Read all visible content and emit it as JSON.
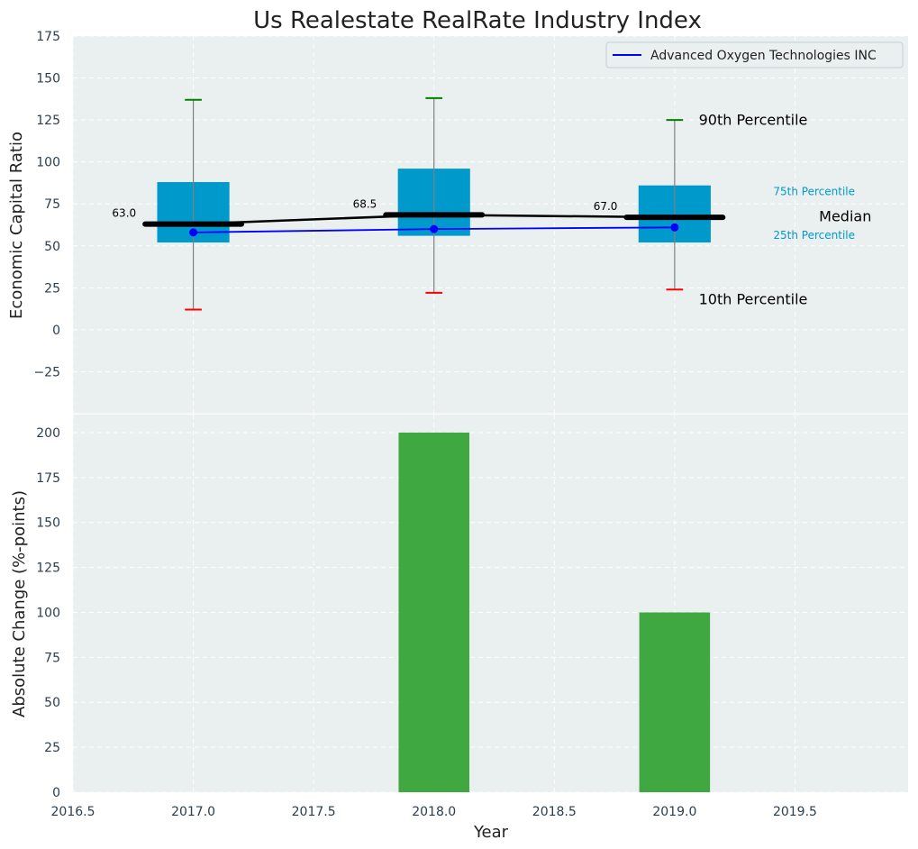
{
  "chart_data": {
    "type": "boxplot+bar",
    "title": "Us Realestate RealRate Industry Index",
    "xlabel": "Year",
    "x_ticks": [
      "2016.5",
      "2017.0",
      "2017.5",
      "2018.0",
      "2018.5",
      "2019.0",
      "2019.5"
    ],
    "xlim": [
      2016.5,
      2019.97
    ],
    "top": {
      "ylabel": "Economic Capital Ratio",
      "ylim": [
        -50,
        175
      ],
      "y_ticks": [
        "−25",
        "0",
        "25",
        "50",
        "75",
        "100",
        "125",
        "150",
        "175"
      ],
      "grid": true,
      "legend": {
        "position": "top-right",
        "entries": [
          "Advanced Oxygen Technologies INC"
        ]
      },
      "years": [
        2017,
        2018,
        2019
      ],
      "p10": [
        12,
        22,
        24
      ],
      "p25": [
        52,
        56,
        52
      ],
      "median": [
        63.0,
        68.5,
        67.0
      ],
      "median_labels": [
        "63.0",
        "68.5",
        "67.0"
      ],
      "p75": [
        88,
        96,
        86
      ],
      "p90": [
        137,
        138,
        125
      ],
      "company_series": {
        "name": "Advanced Oxygen Technologies INC",
        "values": [
          58,
          60,
          61
        ]
      },
      "annotations": {
        "p90": "90th Percentile",
        "p75": "75th Percentile",
        "median": "Median",
        "p25": "25th Percentile",
        "p10": "10th Percentile"
      }
    },
    "bottom": {
      "ylabel": "Absolute Change (%-points)",
      "ylim": [
        0,
        210
      ],
      "y_ticks": [
        "0",
        "25",
        "50",
        "75",
        "100",
        "125",
        "150",
        "175",
        "200"
      ],
      "grid": true,
      "categories": [
        2017,
        2018,
        2019
      ],
      "values": [
        0,
        200,
        100
      ]
    },
    "colors": {
      "box": "#0099cc",
      "median_line": "#000000",
      "company_line": "#0000ff",
      "p90_cap": "#008000",
      "p10_cap": "#ff0000",
      "whisker": "#808080",
      "bar": "#2ca02c",
      "plot_bg": "#eaeff0",
      "tick_text": "#2b3e50",
      "annotation_small": "#0099cc"
    }
  }
}
